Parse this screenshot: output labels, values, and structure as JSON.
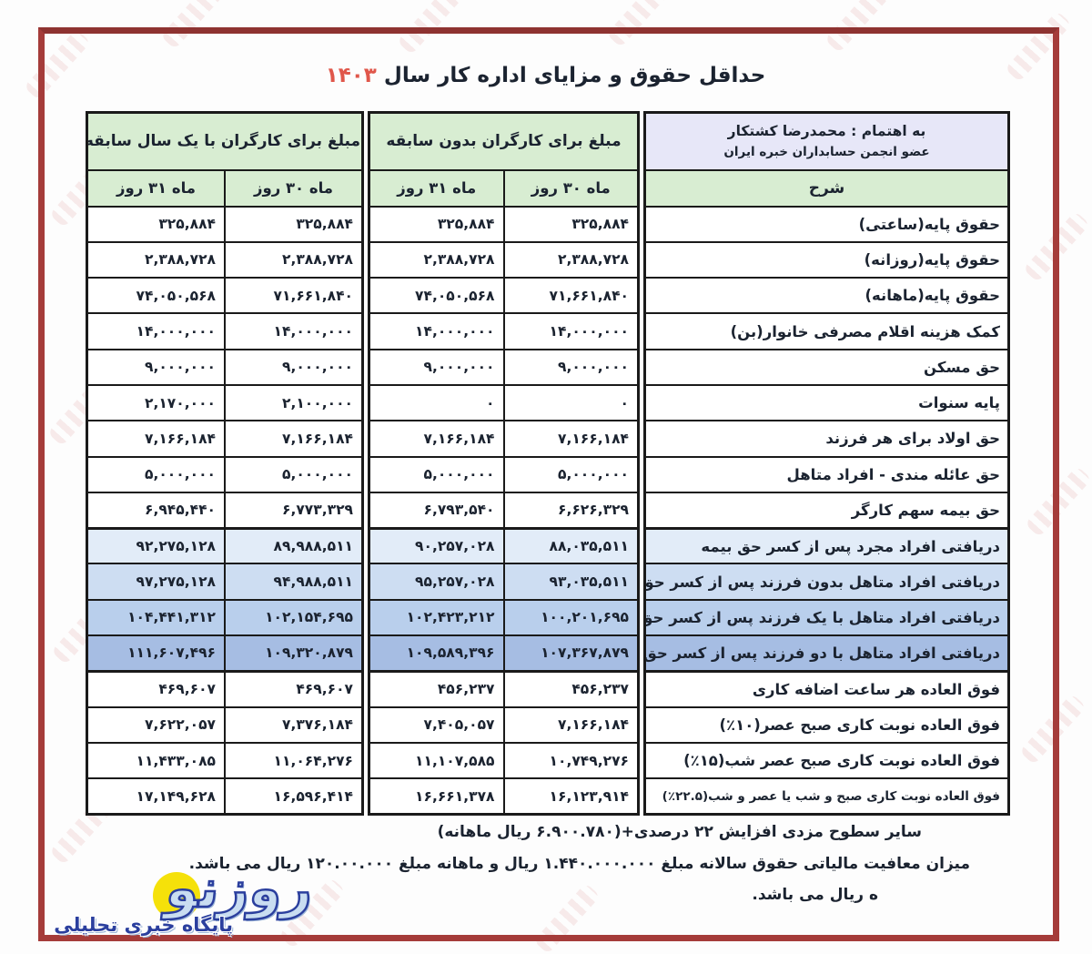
{
  "title": {
    "text": "حداقل حقوق و مزایای اداره کار سال",
    "year": "۱۴۰۳"
  },
  "header": {
    "byline_line1": "به اهتمام : محمدرضا کشتکار",
    "byline_line2": "عضو انجمن حسابداران خبره ایران",
    "desc_col": "شرح",
    "group_no_exp": "مبلغ برای کارگران بدون سابقه",
    "group_one_year": "مبلغ برای کارگران با یک سال سابقه",
    "sub_month_30": "ماه ۳۰ روز",
    "sub_month_31": "ماه ۳۱ روز"
  },
  "table": {
    "rows": [
      {
        "label": "حقوق پایه(ساعتی)",
        "no_exp_30": "۳۲۵,۸۸۴",
        "no_exp_31": "۳۲۵,۸۸۴",
        "exp_30": "۳۲۵,۸۸۴",
        "exp_31": "۳۲۵,۸۸۴"
      },
      {
        "label": "حقوق پایه(روزانه)",
        "no_exp_30": "۲,۳۸۸,۷۲۸",
        "no_exp_31": "۲,۳۸۸,۷۲۸",
        "exp_30": "۲,۳۸۸,۷۲۸",
        "exp_31": "۲,۳۸۸,۷۲۸"
      },
      {
        "label": "حقوق پایه(ماهانه)",
        "no_exp_30": "۷۱,۶۶۱,۸۴۰",
        "no_exp_31": "۷۴,۰۵۰,۵۶۸",
        "exp_30": "۷۱,۶۶۱,۸۴۰",
        "exp_31": "۷۴,۰۵۰,۵۶۸"
      },
      {
        "label": "کمک هزینه اقلام مصرفی خانوار(بن)",
        "no_exp_30": "۱۴,۰۰۰,۰۰۰",
        "no_exp_31": "۱۴,۰۰۰,۰۰۰",
        "exp_30": "۱۴,۰۰۰,۰۰۰",
        "exp_31": "۱۴,۰۰۰,۰۰۰"
      },
      {
        "label": "حق مسکن",
        "no_exp_30": "۹,۰۰۰,۰۰۰",
        "no_exp_31": "۹,۰۰۰,۰۰۰",
        "exp_30": "۹,۰۰۰,۰۰۰",
        "exp_31": "۹,۰۰۰,۰۰۰"
      },
      {
        "label": "پایه سنوات",
        "no_exp_30": "۰",
        "no_exp_31": "۰",
        "exp_30": "۲,۱۰۰,۰۰۰",
        "exp_31": "۲,۱۷۰,۰۰۰"
      },
      {
        "label": "حق اولاد برای هر فرزند",
        "no_exp_30": "۷,۱۶۶,۱۸۴",
        "no_exp_31": "۷,۱۶۶,۱۸۴",
        "exp_30": "۷,۱۶۶,۱۸۴",
        "exp_31": "۷,۱۶۶,۱۸۴"
      },
      {
        "label": "حق عائله مندی - افراد متاهل",
        "no_exp_30": "۵,۰۰۰,۰۰۰",
        "no_exp_31": "۵,۰۰۰,۰۰۰",
        "exp_30": "۵,۰۰۰,۰۰۰",
        "exp_31": "۵,۰۰۰,۰۰۰"
      },
      {
        "label": "حق بیمه سهم کارگر",
        "no_exp_30": "۶,۶۲۶,۳۲۹",
        "no_exp_31": "۶,۷۹۳,۵۴۰",
        "exp_30": "۶,۷۷۳,۳۲۹",
        "exp_31": "۶,۹۴۵,۴۴۰"
      },
      {
        "label": "دریافتی افراد مجرد پس از کسر حق بیمه",
        "no_exp_30": "۸۸,۰۳۵,۵۱۱",
        "no_exp_31": "۹۰,۲۵۷,۰۲۸",
        "exp_30": "۸۹,۹۸۸,۵۱۱",
        "exp_31": "۹۲,۲۷۵,۱۲۸",
        "highlight": "hl1"
      },
      {
        "label": "دریافتی افراد متاهل بدون فرزند پس از کسر حق بیمه",
        "no_exp_30": "۹۳,۰۳۵,۵۱۱",
        "no_exp_31": "۹۵,۲۵۷,۰۲۸",
        "exp_30": "۹۴,۹۸۸,۵۱۱",
        "exp_31": "۹۷,۲۷۵,۱۲۸",
        "highlight": "hl2"
      },
      {
        "label": "دریافتی افراد متاهل با یک فرزند پس از کسر حق بیمه",
        "no_exp_30": "۱۰۰,۲۰۱,۶۹۵",
        "no_exp_31": "۱۰۲,۴۲۳,۲۱۲",
        "exp_30": "۱۰۲,۱۵۴,۶۹۵",
        "exp_31": "۱۰۴,۴۴۱,۳۱۲",
        "highlight": "hl3"
      },
      {
        "label": "دریافتی افراد متاهل با دو فرزند پس از کسر حق بیمه",
        "no_exp_30": "۱۰۷,۳۶۷,۸۷۹",
        "no_exp_31": "۱۰۹,۵۸۹,۳۹۶",
        "exp_30": "۱۰۹,۳۲۰,۸۷۹",
        "exp_31": "۱۱۱,۶۰۷,۴۹۶",
        "highlight": "hl4"
      },
      {
        "label": "فوق العاده هر ساعت اضافه کاری",
        "no_exp_30": "۴۵۶,۲۳۷",
        "no_exp_31": "۴۵۶,۲۳۷",
        "exp_30": "۴۶۹,۶۰۷",
        "exp_31": "۴۶۹,۶۰۷"
      },
      {
        "label": "فوق العاده نوبت کاری صبح عصر(۱۰٪)",
        "no_exp_30": "۷,۱۶۶,۱۸۴",
        "no_exp_31": "۷,۴۰۵,۰۵۷",
        "exp_30": "۷,۳۷۶,۱۸۴",
        "exp_31": "۷,۶۲۲,۰۵۷"
      },
      {
        "label": "فوق العاده نوبت کاری صبح عصر شب(۱۵٪)",
        "no_exp_30": "۱۰,۷۴۹,۲۷۶",
        "no_exp_31": "۱۱,۱۰۷,۵۸۵",
        "exp_30": "۱۱,۰۶۴,۲۷۶",
        "exp_31": "۱۱,۴۳۳,۰۸۵"
      },
      {
        "label": "فوق العاده نوبت کاری صبح و شب یا عصر و شب(۲۲.۵٪)",
        "no_exp_30": "۱۶,۱۲۳,۹۱۴",
        "no_exp_31": "۱۶,۶۶۱,۳۷۸",
        "exp_30": "۱۶,۵۹۶,۴۱۴",
        "exp_31": "۱۷,۱۴۹,۶۲۸"
      }
    ]
  },
  "footnotes": {
    "line1": "سایر سطوح مزدی افزایش ۲۲ درصدی+(۶.۹۰۰.۷۸۰ ریال ماهانه)",
    "line2": "میزان معافیت مالیاتی حقوق سالانه مبلغ ۱.۴۴۰.۰۰۰.۰۰۰ ریال و ماهانه مبلغ ۱۲۰.۰۰.۰۰۰ ریال می باشد.",
    "line3_partial": "ه ریال می باشد."
  },
  "logo": {
    "name": "روزنو",
    "tagline": "پایگاه خبری تحلیلی"
  },
  "colors": {
    "frame-red": "#a53c3a",
    "year-red": "#e0574b",
    "green": "#d8edd2",
    "lavender": "#e7e7f8",
    "blue1": "#e2ecf8",
    "blue2": "#cdddf2",
    "blue3": "#b9cfec",
    "blue4": "#a6bde3",
    "logo-blue": "#2b3f9e",
    "logo-yellow": "#f5e10a"
  }
}
